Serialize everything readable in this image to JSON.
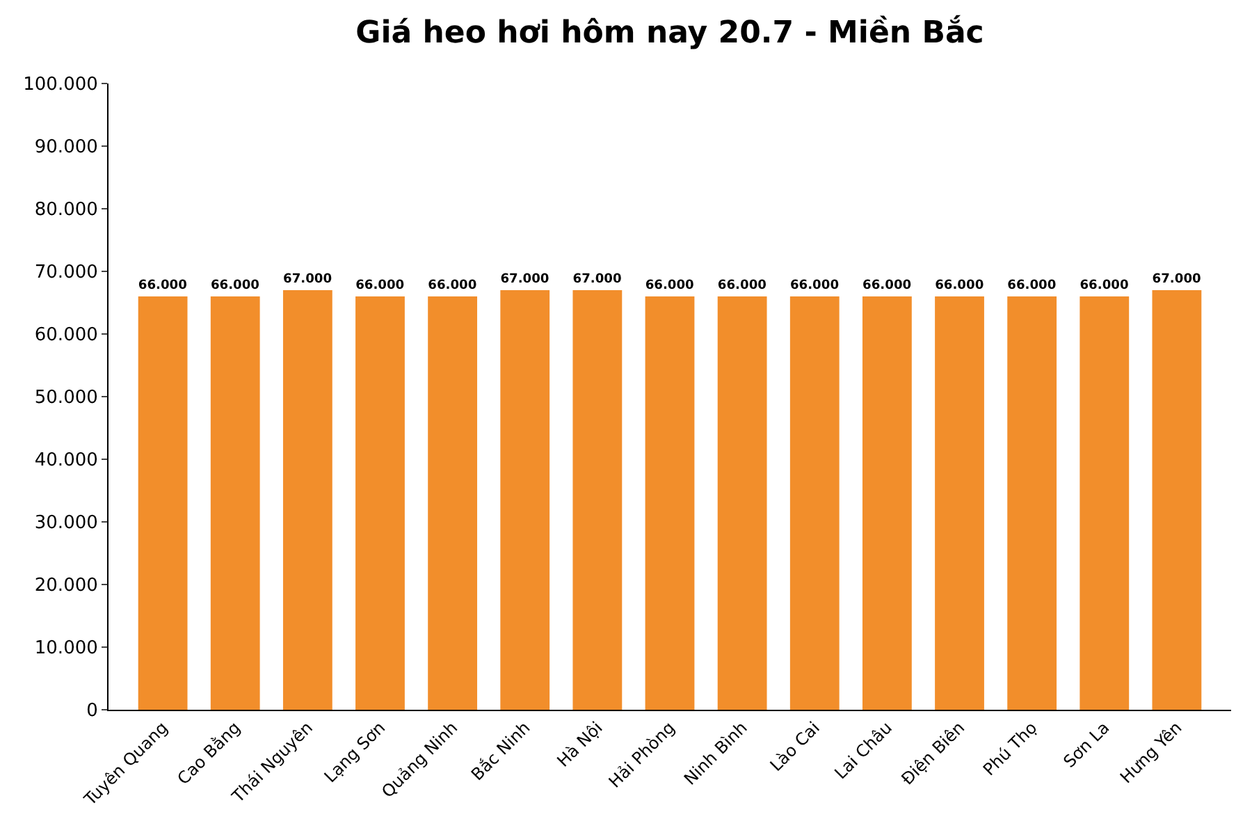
{
  "chart_data": {
    "type": "bar",
    "title": "Giá heo hơi hôm nay 20.7 - Miền Bắc",
    "categories": [
      "Tuyên Quang",
      "Cao Bằng",
      "Thái Nguyên",
      "Lạng Sơn",
      "Quảng Ninh",
      "Bắc Ninh",
      "Hà Nội",
      "Hải Phòng",
      "Ninh Bình",
      "Lào Cai",
      "Lai Châu",
      "Điện Biên",
      "Phú Thọ",
      "Sơn La",
      "Hưng Yên"
    ],
    "values": [
      66,
      66,
      67,
      66,
      66,
      67,
      67,
      66,
      66,
      66,
      66,
      66,
      66,
      66,
      67
    ],
    "value_labels": [
      "66.000",
      "66.000",
      "67.000",
      "66.000",
      "66.000",
      "67.000",
      "67.000",
      "66.000",
      "66.000",
      "66.000",
      "66.000",
      "66.000",
      "66.000",
      "66.000",
      "67.000"
    ],
    "color": "#f28e2b",
    "ylim": [
      0,
      100
    ],
    "yticks": [
      0,
      {
        "value": 10,
        "label": "10.000"
      },
      {
        "value": 20,
        "label": "20.000"
      },
      {
        "value": 30,
        "label": "30.000"
      },
      {
        "value": 40,
        "label": "40.000"
      },
      {
        "value": 50,
        "label": "50.000"
      },
      {
        "value": 60,
        "label": "60.000"
      },
      {
        "value": 70,
        "label": "70.000"
      },
      {
        "value": 80,
        "label": "80.000"
      },
      {
        "value": 90,
        "label": "90.000"
      },
      {
        "value": 100,
        "label": "100.000"
      }
    ],
    "legend": false
  }
}
